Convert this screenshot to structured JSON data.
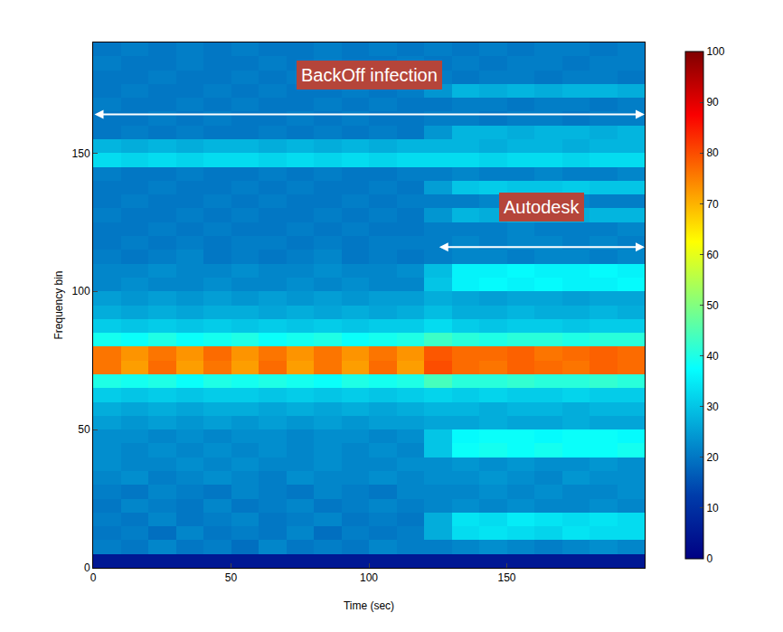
{
  "chart_data": {
    "type": "heatmap",
    "x_label": "Time (sec)",
    "y_label": "Frequency bin",
    "xlim": [
      0,
      200
    ],
    "ylim": [
      0,
      190
    ],
    "xticks": [
      0,
      50,
      100,
      150
    ],
    "yticks": [
      0,
      50,
      100,
      150
    ],
    "colorbar": {
      "range": [
        0,
        100
      ],
      "ticks": [
        0,
        10,
        20,
        30,
        40,
        50,
        60,
        70,
        80,
        90,
        100
      ]
    },
    "color": "Jet",
    "x": [
      5,
      15,
      25,
      35,
      45,
      55,
      65,
      75,
      85,
      95,
      105,
      115,
      125,
      135,
      145,
      155,
      165,
      175,
      185,
      195
    ],
    "y": [
      2.5,
      7.5,
      12.5,
      17.5,
      22.5,
      27.5,
      32.5,
      37.5,
      42.5,
      47.5,
      52.5,
      57.5,
      62.5,
      67.5,
      72.5,
      77.5,
      82.5,
      87.5,
      92.5,
      97.5,
      102.5,
      107.5,
      112.5,
      117.5,
      122.5,
      127.5,
      132.5,
      137.5,
      142.5,
      147.5,
      152.5,
      157.5,
      162.5,
      167.5,
      172.5,
      177.5,
      182.5,
      187.5
    ],
    "z": [
      [
        5,
        5,
        5,
        5,
        5,
        5,
        5,
        5,
        5,
        5,
        5,
        5,
        5,
        5,
        5,
        5,
        5,
        5,
        5,
        5
      ],
      [
        21,
        20,
        22,
        20,
        21,
        19,
        22,
        20,
        21,
        20,
        22,
        21,
        21,
        22,
        23,
        22,
        21,
        22,
        23,
        22
      ],
      [
        20,
        21,
        19,
        22,
        20,
        21,
        20,
        22,
        19,
        21,
        20,
        21,
        27,
        33,
        34,
        33,
        32,
        34,
        33,
        33
      ],
      [
        21,
        20,
        22,
        20,
        21,
        22,
        20,
        21,
        22,
        20,
        21,
        20,
        27,
        34,
        33,
        35,
        34,
        33,
        34,
        33
      ],
      [
        20,
        22,
        21,
        20,
        22,
        20,
        21,
        22,
        20,
        21,
        22,
        21,
        22,
        23,
        22,
        23,
        22,
        22,
        23,
        22
      ],
      [
        21,
        20,
        22,
        21,
        20,
        22,
        21,
        20,
        22,
        21,
        20,
        22,
        22,
        22,
        23,
        22,
        23,
        22,
        22,
        23
      ],
      [
        22,
        23,
        21,
        22,
        23,
        22,
        21,
        23,
        22,
        22,
        23,
        22,
        23,
        23,
        24,
        23,
        22,
        24,
        23,
        23
      ],
      [
        23,
        22,
        22,
        23,
        22,
        23,
        22,
        22,
        23,
        22,
        22,
        23,
        23,
        24,
        23,
        24,
        23,
        23,
        24,
        23
      ],
      [
        23,
        22,
        23,
        22,
        23,
        22,
        23,
        22,
        23,
        22,
        23,
        22,
        30,
        38,
        39,
        38,
        39,
        38,
        38,
        39
      ],
      [
        23,
        23,
        22,
        23,
        22,
        23,
        23,
        22,
        23,
        23,
        22,
        23,
        30,
        37,
        38,
        38,
        37,
        38,
        38,
        37
      ],
      [
        25,
        24,
        25,
        24,
        25,
        24,
        25,
        24,
        25,
        24,
        25,
        25,
        26,
        26,
        27,
        26,
        26,
        27,
        26,
        26
      ],
      [
        27,
        26,
        27,
        26,
        27,
        27,
        26,
        27,
        26,
        27,
        26,
        27,
        28,
        28,
        27,
        28,
        28,
        27,
        28,
        28
      ],
      [
        31,
        30,
        31,
        30,
        31,
        31,
        30,
        31,
        30,
        31,
        30,
        31,
        32,
        31,
        32,
        31,
        31,
        32,
        31,
        31
      ],
      [
        40,
        39,
        40,
        38,
        40,
        39,
        40,
        39,
        38,
        40,
        39,
        40,
        44,
        41,
        41,
        42,
        41,
        41,
        42,
        41
      ],
      [
        76,
        72,
        77,
        72,
        76,
        72,
        77,
        72,
        76,
        72,
        77,
        72,
        80,
        77,
        76,
        78,
        77,
        76,
        78,
        77
      ],
      [
        76,
        73,
        76,
        73,
        77,
        73,
        76,
        73,
        76,
        73,
        76,
        73,
        79,
        77,
        77,
        78,
        76,
        77,
        78,
        77
      ],
      [
        39,
        38,
        40,
        38,
        39,
        40,
        38,
        39,
        40,
        38,
        39,
        40,
        43,
        41,
        40,
        41,
        41,
        40,
        41,
        41
      ],
      [
        31,
        30,
        31,
        30,
        31,
        30,
        31,
        30,
        31,
        30,
        31,
        31,
        33,
        31,
        30,
        31,
        31,
        30,
        31,
        31
      ],
      [
        27,
        26,
        27,
        26,
        27,
        27,
        26,
        27,
        26,
        27,
        26,
        27,
        29,
        27,
        27,
        28,
        27,
        27,
        28,
        27
      ],
      [
        25,
        24,
        25,
        24,
        25,
        24,
        25,
        24,
        25,
        24,
        25,
        25,
        27,
        26,
        25,
        26,
        26,
        25,
        26,
        26
      ],
      [
        22,
        23,
        22,
        22,
        23,
        22,
        22,
        23,
        22,
        23,
        22,
        22,
        30,
        36,
        37,
        36,
        37,
        36,
        36,
        37
      ],
      [
        22,
        22,
        23,
        22,
        22,
        23,
        22,
        22,
        23,
        22,
        22,
        23,
        29,
        36,
        36,
        37,
        36,
        36,
        37,
        36
      ],
      [
        21,
        20,
        21,
        22,
        20,
        21,
        20,
        21,
        22,
        20,
        21,
        20,
        21,
        22,
        22,
        21,
        22,
        22,
        21,
        22
      ],
      [
        20,
        21,
        20,
        21,
        20,
        21,
        21,
        20,
        21,
        20,
        21,
        21,
        21,
        22,
        21,
        22,
        22,
        21,
        22,
        21
      ],
      [
        20,
        20,
        21,
        20,
        21,
        20,
        20,
        21,
        20,
        21,
        20,
        20,
        21,
        21,
        21,
        22,
        21,
        21,
        21,
        22
      ],
      [
        21,
        20,
        20,
        21,
        20,
        21,
        20,
        20,
        21,
        20,
        21,
        20,
        24,
        28,
        27,
        28,
        28,
        27,
        28,
        28
      ],
      [
        20,
        21,
        20,
        20,
        21,
        20,
        21,
        20,
        20,
        21,
        20,
        21,
        21,
        21,
        22,
        21,
        21,
        22,
        21,
        21
      ],
      [
        20,
        20,
        21,
        20,
        20,
        21,
        20,
        21,
        20,
        20,
        21,
        20,
        25,
        30,
        31,
        30,
        30,
        31,
        30,
        30
      ],
      [
        21,
        20,
        20,
        21,
        20,
        20,
        21,
        20,
        21,
        20,
        20,
        21,
        21,
        22,
        21,
        21,
        22,
        21,
        21,
        22
      ],
      [
        33,
        32,
        33,
        32,
        33,
        33,
        32,
        33,
        32,
        33,
        32,
        33,
        33,
        33,
        32,
        33,
        33,
        32,
        33,
        33
      ],
      [
        28,
        27,
        28,
        27,
        28,
        28,
        27,
        28,
        27,
        28,
        27,
        28,
        28,
        28,
        27,
        28,
        28,
        27,
        28,
        28
      ],
      [
        20,
        21,
        20,
        21,
        20,
        20,
        21,
        20,
        21,
        20,
        21,
        20,
        24,
        28,
        28,
        27,
        28,
        28,
        27,
        28
      ],
      [
        20,
        20,
        21,
        20,
        21,
        20,
        20,
        21,
        20,
        21,
        20,
        20,
        21,
        21,
        20,
        21,
        21,
        20,
        21,
        21
      ],
      [
        21,
        20,
        20,
        21,
        20,
        21,
        20,
        20,
        21,
        20,
        21,
        20,
        20,
        21,
        21,
        20,
        21,
        21,
        20,
        21
      ],
      [
        20,
        21,
        20,
        20,
        21,
        20,
        21,
        20,
        20,
        21,
        20,
        21,
        24,
        28,
        27,
        28,
        27,
        28,
        28,
        27
      ],
      [
        20,
        20,
        21,
        20,
        20,
        21,
        20,
        21,
        20,
        20,
        21,
        20,
        21,
        20,
        21,
        21,
        20,
        21,
        21,
        20
      ],
      [
        21,
        20,
        20,
        21,
        20,
        20,
        21,
        20,
        21,
        20,
        20,
        21,
        20,
        21,
        20,
        21,
        21,
        20,
        21,
        21
      ],
      [
        20,
        21,
        20,
        21,
        20,
        21,
        20,
        20,
        21,
        20,
        21,
        20,
        21,
        20,
        21,
        20,
        21,
        21,
        20,
        21
      ]
    ],
    "annotations": [
      {
        "text": "BackOff infection",
        "x": [
          0,
          200
        ],
        "y": 164
      },
      {
        "text": "Autodesk",
        "x": [
          125,
          200
        ],
        "y": 116
      }
    ]
  }
}
